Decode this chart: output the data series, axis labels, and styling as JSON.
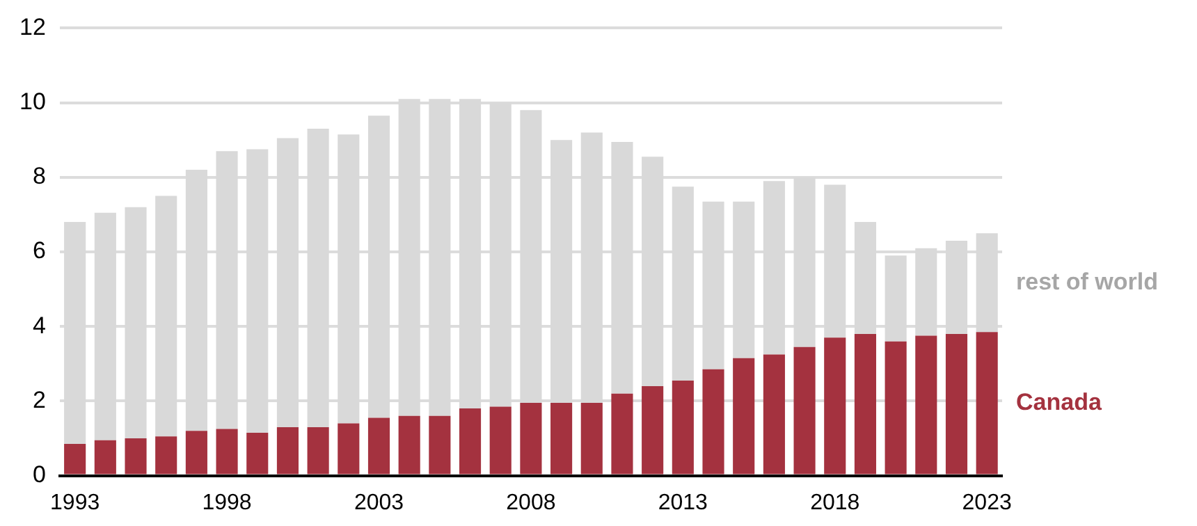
{
  "chart_data": {
    "type": "bar",
    "stacked": true,
    "categories": [
      "1993",
      null,
      null,
      null,
      null,
      "1998",
      null,
      null,
      null,
      null,
      "2003",
      null,
      null,
      null,
      null,
      "2008",
      null,
      null,
      null,
      null,
      "2013",
      null,
      null,
      null,
      null,
      "2018",
      null,
      null,
      null,
      null,
      "2023"
    ],
    "series": [
      {
        "name": "Canada",
        "color": "#a4323f",
        "values": [
          0.85,
          0.95,
          1.0,
          1.05,
          1.2,
          1.25,
          1.15,
          1.3,
          1.3,
          1.4,
          1.55,
          1.6,
          1.6,
          1.8,
          1.85,
          1.95,
          1.95,
          1.95,
          2.2,
          2.4,
          2.55,
          2.85,
          3.15,
          3.25,
          3.45,
          3.7,
          3.8,
          3.6,
          3.75,
          3.8,
          3.85
        ]
      },
      {
        "name": "rest of world",
        "color": "#d9d9d9",
        "values": [
          5.95,
          6.1,
          6.2,
          6.45,
          7.0,
          7.45,
          7.6,
          7.75,
          8.0,
          7.75,
          8.1,
          8.5,
          8.5,
          8.3,
          8.15,
          7.85,
          7.05,
          7.25,
          6.75,
          6.15,
          5.2,
          4.5,
          4.2,
          4.65,
          4.55,
          4.1,
          3.0,
          2.3,
          2.35,
          2.5,
          2.65
        ]
      }
    ],
    "ylim": [
      0,
      12
    ],
    "yticks": [
      0,
      2,
      4,
      6,
      8,
      10,
      12
    ],
    "grid": "y",
    "legend": false
  }
}
